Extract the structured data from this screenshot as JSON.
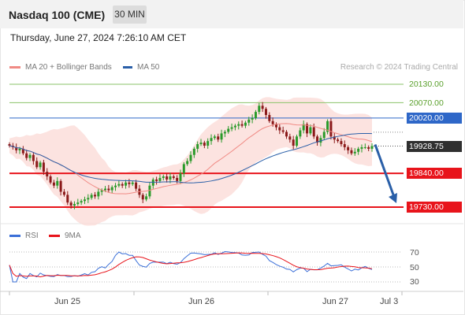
{
  "header": {
    "title": "Nasdaq 100 (CME)",
    "timeframe": "30 MIN"
  },
  "datetime": "Thursday, June 27, 2024 7:26:10 AM CET",
  "legend": {
    "ma20": {
      "label": "MA 20 + Bollinger Bands",
      "color": "#f08a84"
    },
    "ma50": {
      "label": "MA 50",
      "color": "#2a5fa8"
    }
  },
  "copyright": "Research © 2024 Trading Central",
  "price_levels": [
    {
      "label": "20130.00",
      "type": "resistance-2",
      "color": "#8ac36a"
    },
    {
      "label": "20070.00",
      "type": "resistance-1",
      "color": "#8ac36a"
    },
    {
      "label": "20020.00",
      "type": "pivot",
      "color": "#2e67c8"
    },
    {
      "label": "19928.75",
      "type": "last-price",
      "color": "#2f2f2f"
    },
    {
      "label": "19840.00",
      "type": "support-1",
      "color": "#e8141b"
    },
    {
      "label": "19730.00",
      "type": "support-2",
      "color": "#e8141b"
    }
  ],
  "rsi_legend": {
    "rsi": {
      "label": "RSI",
      "color": "#3a6fd8"
    },
    "ma9": {
      "label": "9MA",
      "color": "#e8141b"
    }
  },
  "rsi_ticks": [
    "70",
    "50",
    "30"
  ],
  "x_labels": [
    "Jun 25",
    "Jun 26",
    "Jun 27",
    "Jul 3"
  ],
  "chart_data": {
    "type": "candlestick",
    "y_unit": "index points",
    "visible_y_range": [
      19720,
      20145
    ],
    "levels": [
      20130.0,
      20070.0,
      20020.0,
      19928.75,
      19840.0,
      19730.0
    ],
    "forecast": {
      "from": 19928.75,
      "to": 19730.0,
      "direction": "down"
    },
    "x_axis_labels": [
      "Jun 25",
      "Jun 26",
      "Jun 27",
      "Jul 3"
    ],
    "rsi": {
      "ticks": [
        70,
        50,
        30
      ]
    },
    "close": [
      19930,
      19925,
      19915,
      19920,
      19905,
      19890,
      19900,
      19880,
      19860,
      19875,
      19845,
      19830,
      19810,
      19800,
      19815,
      19780,
      19770,
      19745,
      19735,
      19740,
      19745,
      19750,
      19755,
      19760,
      19770,
      19765,
      19780,
      19785,
      19790,
      19785,
      19795,
      19800,
      19805,
      19800,
      19810,
      19805,
      19810,
      19790,
      19770,
      19755,
      19765,
      19800,
      19820,
      19815,
      19825,
      19830,
      19820,
      19830,
      19825,
      19815,
      19840,
      19870,
      19880,
      19900,
      19920,
      19935,
      19940,
      19930,
      19945,
      19955,
      19960,
      19950,
      19970,
      19975,
      19985,
      19990,
      19995,
      20000,
      19995,
      20005,
      20015,
      20020,
      20040,
      20060,
      20050,
      20030,
      20010,
      20000,
      19990,
      19980,
      19975,
      19960,
      19950,
      19930,
      19960,
      19980,
      20000,
      19970,
      19990,
      19960,
      19940,
      19955,
      19975,
      20010,
      19960,
      19950,
      19945,
      19935,
      19925,
      19915,
      19905,
      19910,
      19920,
      19925,
      19925,
      19920,
      19928.75
    ]
  }
}
